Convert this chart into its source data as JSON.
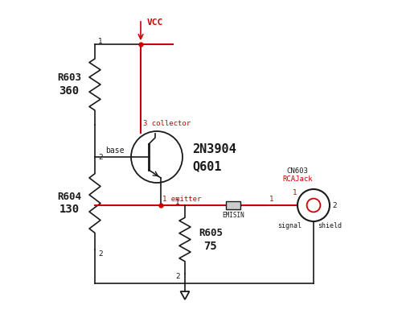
{
  "bg_color": "#ffffff",
  "black": "#1a1a1a",
  "red": "#cc0000",
  "r603_line1": "R603",
  "r603_line2": "360",
  "r604_line1": "R604",
  "r604_line2": "130",
  "r605_line1": "R605",
  "r605_line2": "75",
  "transistor_line1": "2N3904",
  "transistor_line2": "Q601",
  "cn603_line1": "CN603",
  "cn603_line2": "RCAJack",
  "vcc_label": "VCC",
  "base_label": "base",
  "collector_label": "collector",
  "emitter_label": "emitter",
  "emis_label": "EMISIN",
  "signal_label": "signal",
  "shield_label": "shield"
}
